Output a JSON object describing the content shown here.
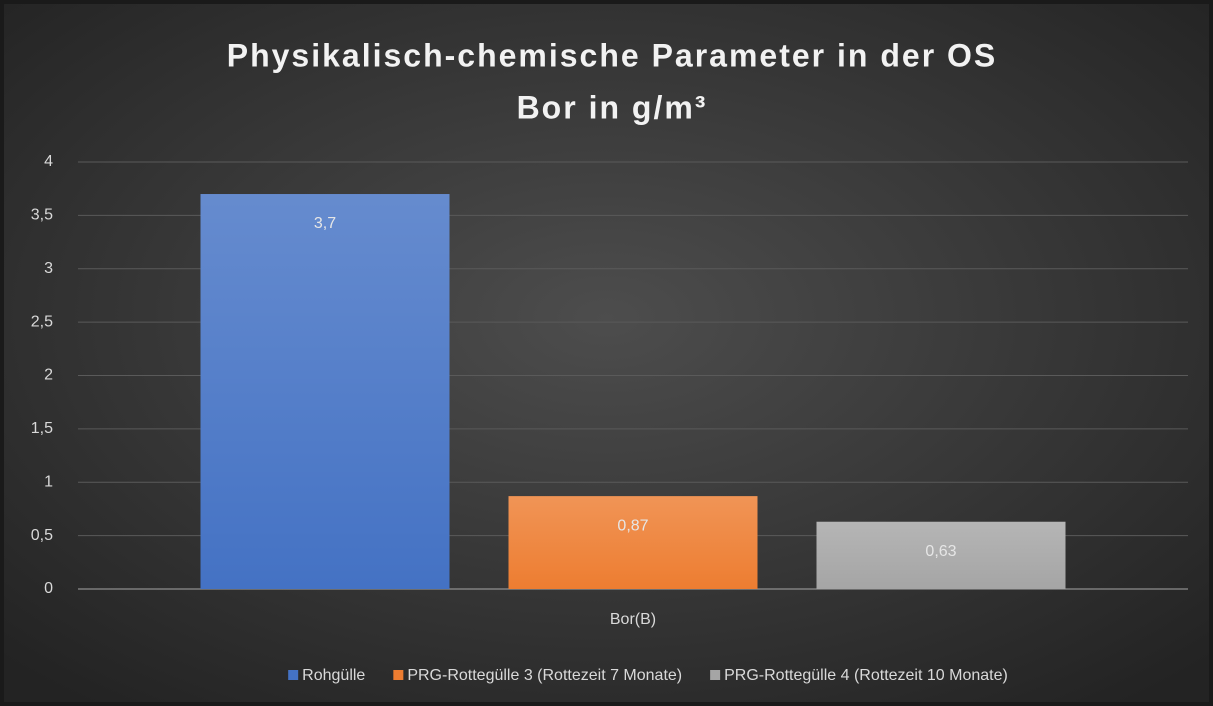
{
  "chart_data": {
    "type": "bar",
    "title": "Physikalisch-chemische Parameter in der OS",
    "subtitle": "Bor in g/m³",
    "categories": [
      "Bor(B)"
    ],
    "series": [
      {
        "name": "Rohgülle",
        "color": "#4472c4",
        "values": [
          3.7
        ],
        "value_labels": [
          "3,7"
        ]
      },
      {
        "name": "PRG-Rottegülle 3 (Rottezeit 7 Monate)",
        "color": "#ed7d31",
        "values": [
          0.87
        ],
        "value_labels": [
          "0,87"
        ]
      },
      {
        "name": "PRG-Rottegülle 4 (Rottezeit 10 Monate)",
        "color": "#a5a5a5",
        "values": [
          0.63
        ],
        "value_labels": [
          "0,63"
        ]
      }
    ],
    "ylim": [
      0,
      4
    ],
    "yticks": [
      0,
      {
        "value": 0.5,
        "label": "0,5"
      },
      1,
      {
        "value": 1.5,
        "label": "1,5"
      },
      2,
      {
        "value": 2.5,
        "label": "2,5"
      },
      3,
      {
        "value": 3.5,
        "label": "3,5"
      },
      4
    ],
    "grid": true,
    "legend": "bottom"
  }
}
